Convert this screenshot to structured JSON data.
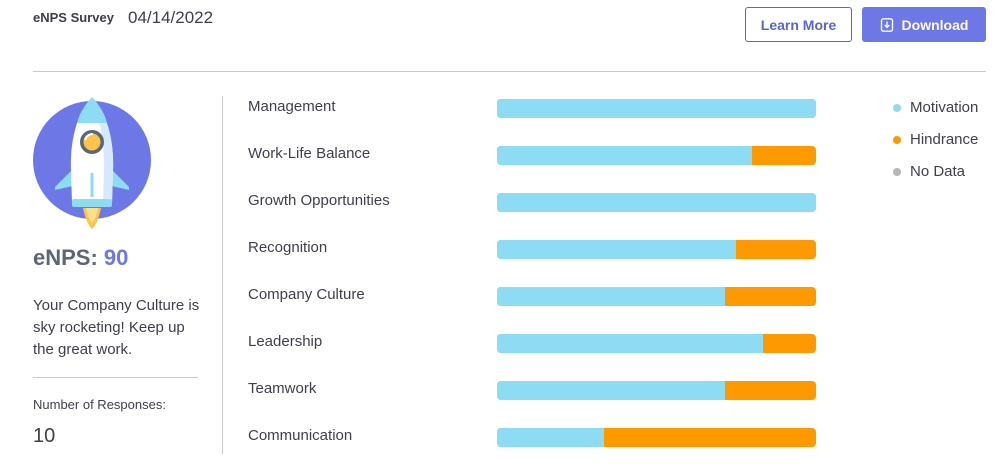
{
  "header": {
    "title": "eNPS Survey",
    "date": "04/14/2022",
    "learn_more_label": "Learn More",
    "download_label": "Download"
  },
  "summary": {
    "score_label": "eNPS:",
    "score_value": "90",
    "message": "Your Company Culture is sky rocketing! Keep up the great work.",
    "responses_label": "Number of Responses:",
    "responses_value": "10"
  },
  "categories": [
    {
      "label": "Management",
      "motivation_pct": 100
    },
    {
      "label": "Work-Life Balance",
      "motivation_pct": 80
    },
    {
      "label": "Growth Opportunities",
      "motivation_pct": 100
    },
    {
      "label": "Recognition",
      "motivation_pct": 75
    },
    {
      "label": "Company Culture",
      "motivation_pct": 71.5
    },
    {
      "label": "Leadership",
      "motivation_pct": 83.5
    },
    {
      "label": "Teamwork",
      "motivation_pct": 71.5
    },
    {
      "label": "Communication",
      "motivation_pct": 33.5
    }
  ],
  "legend": [
    {
      "label": "Motivation",
      "color": "#8edcf3"
    },
    {
      "label": "Hindrance",
      "color": "#ff9900"
    },
    {
      "label": "No Data",
      "color": "#b7b7b7"
    }
  ],
  "colors": {
    "accent": "#6e77e6",
    "motivation": "#8edcf3",
    "hindrance": "#ff9900"
  }
}
